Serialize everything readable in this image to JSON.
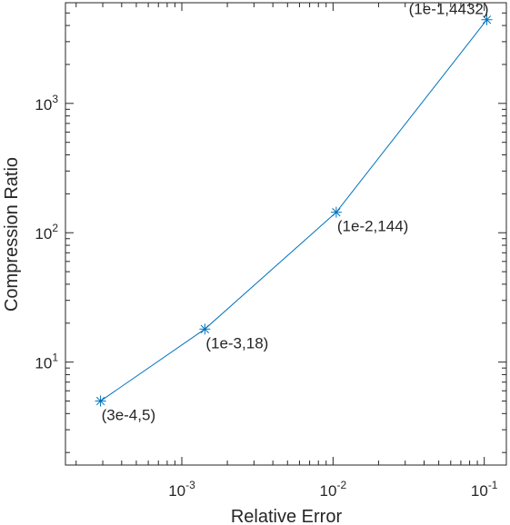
{
  "chart_data": {
    "type": "line",
    "title": "",
    "xlabel": "Relative Error",
    "ylabel": "Compression Ratio",
    "xscale": "log",
    "yscale": "log",
    "xlim": [
      0.00017,
      0.14
    ],
    "ylim": [
      1.6,
      6000
    ],
    "grid": false,
    "series_color": "#0072BD",
    "marker": "asterisk",
    "x_ticks": [
      {
        "value": 0.001,
        "base": "10",
        "exp": "-3"
      },
      {
        "value": 0.01,
        "base": "10",
        "exp": "-2"
      },
      {
        "value": 0.1,
        "base": "10",
        "exp": "-1"
      }
    ],
    "y_ticks": [
      {
        "value": 10,
        "base": "10",
        "exp": "1"
      },
      {
        "value": 100,
        "base": "10",
        "exp": "2"
      },
      {
        "value": 1000,
        "base": "10",
        "exp": "3"
      }
    ],
    "series": [
      {
        "x": [
          0.00029,
          0.00142,
          0.0105,
          0.104
        ],
        "y": [
          5,
          18,
          144,
          4432
        ]
      }
    ],
    "annotations": [
      {
        "text": "(3e-4,5)",
        "x": 0.00029,
        "y": 5,
        "placement": "below-right"
      },
      {
        "text": "(1e-3,18)",
        "x": 0.00142,
        "y": 18,
        "placement": "below-right"
      },
      {
        "text": "(1e-2,144)",
        "x": 0.0105,
        "y": 144,
        "placement": "below-right"
      },
      {
        "text": "(1e-1,4432)",
        "x": 0.104,
        "y": 4432,
        "placement": "above-left"
      }
    ]
  }
}
